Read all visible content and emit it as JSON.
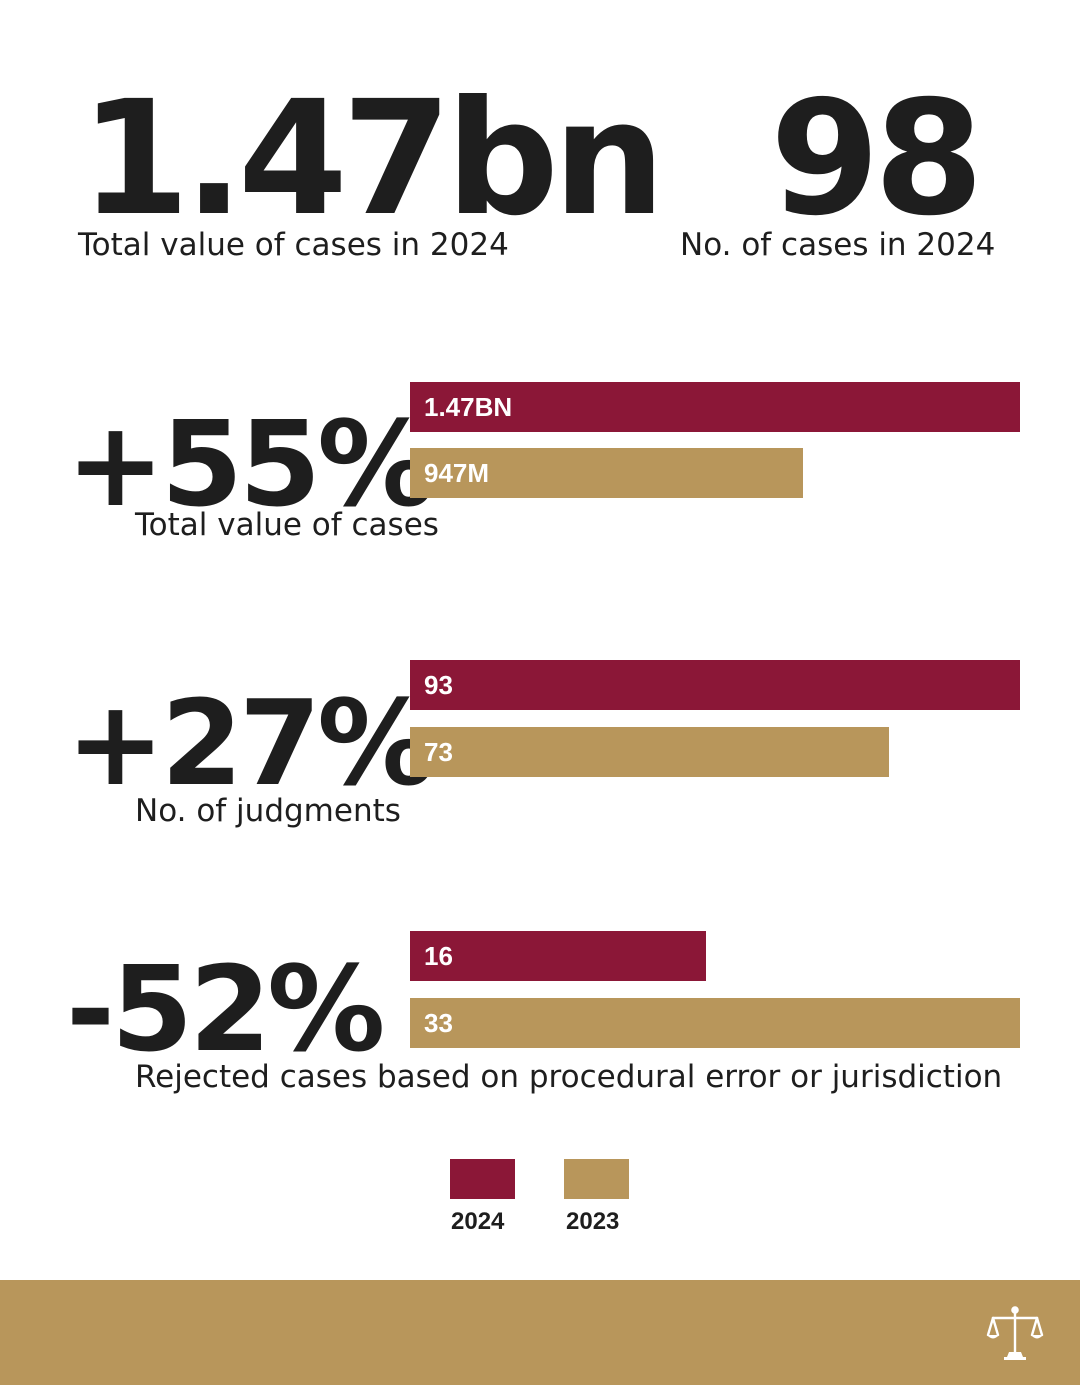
{
  "kpis": [
    {
      "value": "1.47bn",
      "label": "Total value of cases in 2024"
    },
    {
      "value": "98",
      "label": "No. of cases in 2024"
    }
  ],
  "colors": {
    "y2024": "#8b1737",
    "y2023": "#b8965b",
    "text": "#1e1e1e",
    "footer": "#b8965b"
  },
  "chart_data": [
    {
      "type": "bar",
      "title": "+55%",
      "subtitle": "Total value of cases",
      "series": [
        {
          "name": "2024",
          "value": 1470,
          "label": "1.47BN"
        },
        {
          "name": "2023",
          "value": 947,
          "label": "947M"
        }
      ],
      "xlim": [
        0,
        1470
      ]
    },
    {
      "type": "bar",
      "title": "+27%",
      "subtitle": "No. of judgments",
      "series": [
        {
          "name": "2024",
          "value": 93,
          "label": "93"
        },
        {
          "name": "2023",
          "value": 73,
          "label": "73"
        }
      ],
      "xlim": [
        0,
        93
      ]
    },
    {
      "type": "bar",
      "title": "-52%",
      "subtitle": "Rejected cases based on procedural error or jurisdiction",
      "series": [
        {
          "name": "2024",
          "value": 16,
          "label": "16"
        },
        {
          "name": "2023",
          "value": 33,
          "label": "33"
        }
      ],
      "xlim": [
        0,
        33
      ]
    }
  ],
  "legend": [
    {
      "name": "2024"
    },
    {
      "name": "2023"
    }
  ],
  "footer": {
    "icon": "scales-of-justice-icon"
  }
}
